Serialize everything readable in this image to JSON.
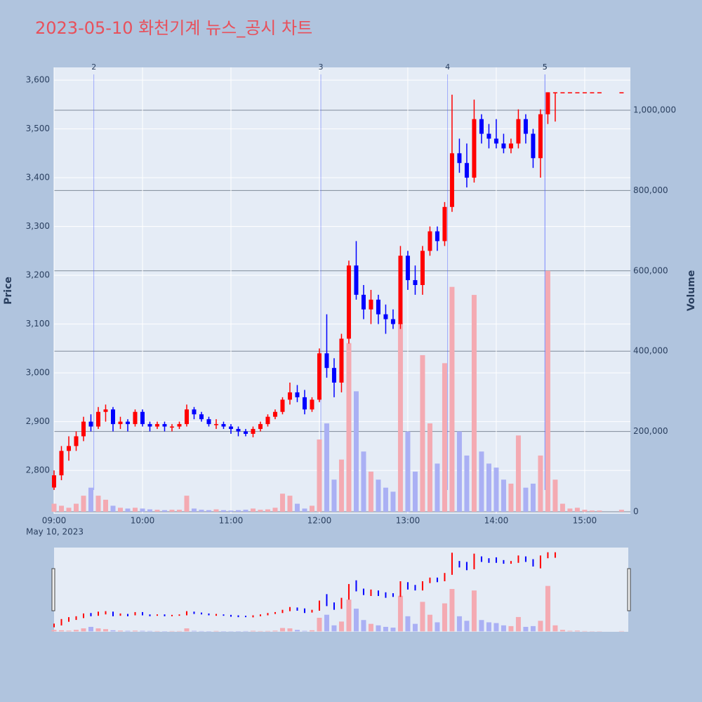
{
  "chart_data": {
    "type": "candlestick",
    "title": "2023-05-10 화천기계 뉴스_공시 차트",
    "y_title": "Price",
    "y2_title": "Volume",
    "date_label": "May 10, 2023",
    "rising_color": "#ff0000",
    "falling_color": "#0000ff",
    "volume_colors": [
      "#f4aab2",
      "#aab0f4"
    ],
    "xlim": [
      "09:00",
      "15:31"
    ],
    "xticks": [
      "09:00",
      "10:00",
      "11:00",
      "12:00",
      "13:00",
      "14:00",
      "15:00"
    ],
    "ylim": [
      2711,
      3626
    ],
    "yticks": [
      {
        "value": 2800,
        "label": "2,800"
      },
      {
        "value": 2900,
        "label": "2,900"
      },
      {
        "value": 3000,
        "label": "3,000"
      },
      {
        "value": 3100,
        "label": "3,100"
      },
      {
        "value": 3200,
        "label": "3,200"
      },
      {
        "value": 3300,
        "label": "3,300"
      },
      {
        "value": 3400,
        "label": "3,400"
      },
      {
        "value": 3500,
        "label": "3,500"
      },
      {
        "value": 3600,
        "label": "3,600"
      }
    ],
    "y2lim": [
      -5245,
      1106600
    ],
    "y2ticks": [
      0,
      {
        "value": 200000,
        "label": "200,000"
      },
      {
        "value": 400000,
        "label": "400,000"
      },
      {
        "value": 600000,
        "label": "600,000"
      },
      {
        "value": 800000,
        "label": "800,000"
      },
      {
        "value": 1000000,
        "label": "1,000,000"
      }
    ],
    "news": [
      {
        "label": "2",
        "x": "09:27"
      },
      {
        "label": "3",
        "x": "12:01"
      },
      {
        "label": "4",
        "x": "13:27"
      },
      {
        "label": "5",
        "x": "14:33"
      },
      {
        "label": "5",
        "x": "14:33"
      }
    ],
    "x": [
      "09:00",
      "09:05",
      "09:10",
      "09:15",
      "09:20",
      "09:25",
      "09:30",
      "09:35",
      "09:40",
      "09:45",
      "09:50",
      "09:55",
      "10:00",
      "10:05",
      "10:10",
      "10:15",
      "10:20",
      "10:25",
      "10:30",
      "10:35",
      "10:40",
      "10:45",
      "10:50",
      "10:55",
      "11:00",
      "11:05",
      "11:10",
      "11:15",
      "11:20",
      "11:25",
      "11:30",
      "11:35",
      "11:40",
      "11:45",
      "11:50",
      "11:55",
      "12:00",
      "12:05",
      "12:10",
      "12:15",
      "12:20",
      "12:25",
      "12:30",
      "12:35",
      "12:40",
      "12:45",
      "12:50",
      "12:55",
      "13:00",
      "13:05",
      "13:10",
      "13:15",
      "13:20",
      "13:25",
      "13:30",
      "13:35",
      "13:40",
      "13:45",
      "13:50",
      "13:55",
      "14:00",
      "14:05",
      "14:10",
      "14:15",
      "14:20",
      "14:25",
      "14:30",
      "14:35",
      "14:40",
      "14:45",
      "14:50",
      "14:55",
      "15:00",
      "15:05",
      "15:10",
      "15:25"
    ],
    "open": [
      2765,
      2790,
      2840,
      2850,
      2870,
      2900,
      2890,
      2920,
      2925,
      2895,
      2900,
      2895,
      2920,
      2895,
      2890,
      2895,
      2890,
      2890,
      2895,
      2925,
      2915,
      2905,
      2895,
      2895,
      2890,
      2885,
      2880,
      2875,
      2885,
      2895,
      2910,
      2920,
      2945,
      2960,
      2950,
      2925,
      2945,
      3040,
      3010,
      2980,
      3070,
      3220,
      3160,
      3130,
      3150,
      3120,
      3110,
      3100,
      3240,
      3190,
      3180,
      3250,
      3290,
      3270,
      3340,
      3450,
      3430,
      3400,
      3520,
      3490,
      3480,
      3470,
      3460,
      3470,
      3520,
      3490,
      3440,
      3530,
      3575,
      3575,
      3575,
      3575,
      3575,
      3575,
      3575,
      3575
    ],
    "high": [
      2800,
      2850,
      2870,
      2880,
      2910,
      2915,
      2930,
      2935,
      2930,
      2910,
      2905,
      2925,
      2925,
      2900,
      2900,
      2900,
      2895,
      2900,
      2935,
      2930,
      2920,
      2910,
      2905,
      2900,
      2895,
      2890,
      2885,
      2890,
      2900,
      2915,
      2925,
      2950,
      2980,
      2975,
      2965,
      2950,
      3050,
      3120,
      3030,
      3080,
      3230,
      3270,
      3180,
      3170,
      3160,
      3140,
      3130,
      3260,
      3250,
      3220,
      3260,
      3300,
      3300,
      3350,
      3570,
      3480,
      3470,
      3560,
      3530,
      3510,
      3520,
      3490,
      3480,
      3540,
      3530,
      3500,
      3540,
      3575,
      3575,
      3575,
      3575,
      3575,
      3575,
      3575,
      3575,
      3575
    ],
    "low": [
      2760,
      2780,
      2820,
      2840,
      2860,
      2880,
      2885,
      2900,
      2880,
      2885,
      2880,
      2890,
      2890,
      2880,
      2885,
      2880,
      2880,
      2885,
      2890,
      2905,
      2900,
      2890,
      2885,
      2885,
      2875,
      2870,
      2870,
      2868,
      2880,
      2890,
      2905,
      2915,
      2935,
      2940,
      2915,
      2920,
      2940,
      2990,
      2950,
      2960,
      3060,
      3150,
      3110,
      3100,
      3100,
      3080,
      3090,
      3090,
      3170,
      3160,
      3160,
      3240,
      3250,
      3260,
      3330,
      3410,
      3380,
      3390,
      3470,
      3460,
      3460,
      3450,
      3450,
      3460,
      3470,
      3420,
      3400,
      3510,
      3515,
      3575,
      3575,
      3575,
      3575,
      3575,
      3575,
      3575
    ],
    "close": [
      2790,
      2840,
      2850,
      2870,
      2900,
      2890,
      2920,
      2925,
      2895,
      2900,
      2895,
      2920,
      2895,
      2890,
      2895,
      2890,
      2890,
      2895,
      2925,
      2915,
      2905,
      2895,
      2895,
      2890,
      2885,
      2880,
      2875,
      2885,
      2895,
      2910,
      2920,
      2945,
      2960,
      2950,
      2925,
      2945,
      3040,
      3010,
      2980,
      3070,
      3220,
      3160,
      3130,
      3150,
      3120,
      3110,
      3100,
      3240,
      3190,
      3180,
      3250,
      3290,
      3270,
      3340,
      3450,
      3430,
      3400,
      3520,
      3490,
      3480,
      3470,
      3460,
      3470,
      3520,
      3490,
      3440,
      3530,
      3575,
      3575,
      3575,
      3575,
      3575,
      3575,
      3575,
      3575,
      3575
    ],
    "volume": [
      20000,
      15000,
      10000,
      20000,
      40000,
      60000,
      40000,
      30000,
      15000,
      10000,
      8000,
      10000,
      8000,
      6000,
      5000,
      4000,
      5000,
      5000,
      40000,
      8000,
      5000,
      4000,
      6000,
      4000,
      3000,
      4000,
      5000,
      8000,
      5000,
      6000,
      10000,
      45000,
      40000,
      20000,
      8000,
      15000,
      180000,
      220000,
      80000,
      130000,
      420000,
      300000,
      150000,
      100000,
      80000,
      60000,
      50000,
      470000,
      200000,
      100000,
      390000,
      220000,
      120000,
      370000,
      560000,
      200000,
      140000,
      540000,
      150000,
      120000,
      110000,
      80000,
      70000,
      190000,
      60000,
      70000,
      140000,
      600000,
      80000,
      20000,
      8000,
      10000,
      5000,
      3000,
      3000,
      5000
    ]
  }
}
